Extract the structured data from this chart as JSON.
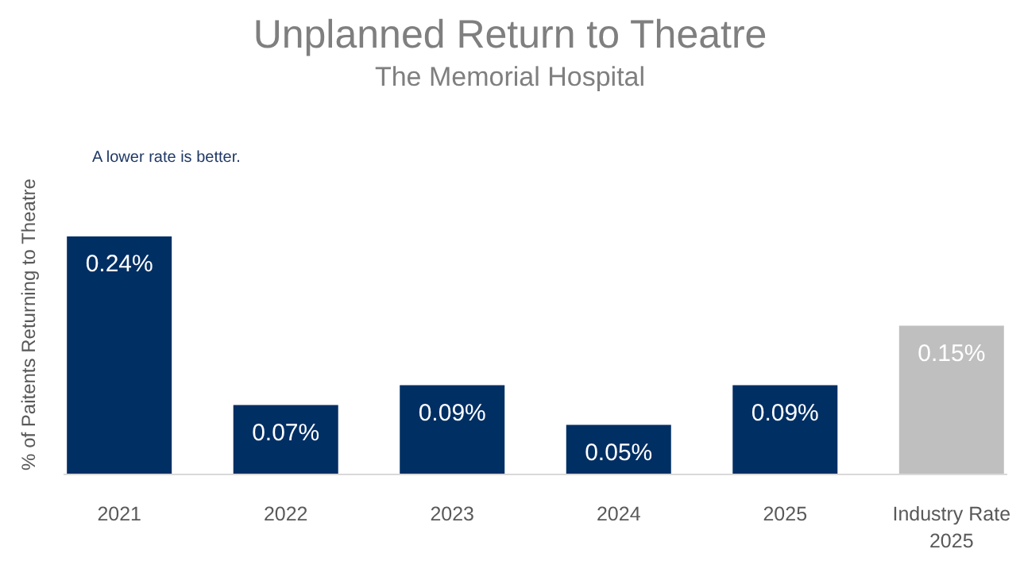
{
  "chart_data": {
    "type": "bar",
    "title": "Unplanned Return to Theatre",
    "subtitle": "The Memorial Hospital",
    "ylabel": "% of Paitents Returning to Theatre",
    "annotations": [
      "A lower rate is better."
    ],
    "categories": [
      "2021",
      "2022",
      "2023",
      "2024",
      "2025",
      "Industry Rate 2025"
    ],
    "values": [
      0.24,
      0.07,
      0.09,
      0.05,
      0.09,
      0.15
    ],
    "colors": [
      "#002f64",
      "#002f64",
      "#002f64",
      "#002f64",
      "#002f64",
      "#bfbfbf"
    ],
    "value_labels": [
      "0.24%",
      "0.07%",
      "0.09%",
      "0.05%",
      "0.09%",
      "0.15%"
    ]
  }
}
